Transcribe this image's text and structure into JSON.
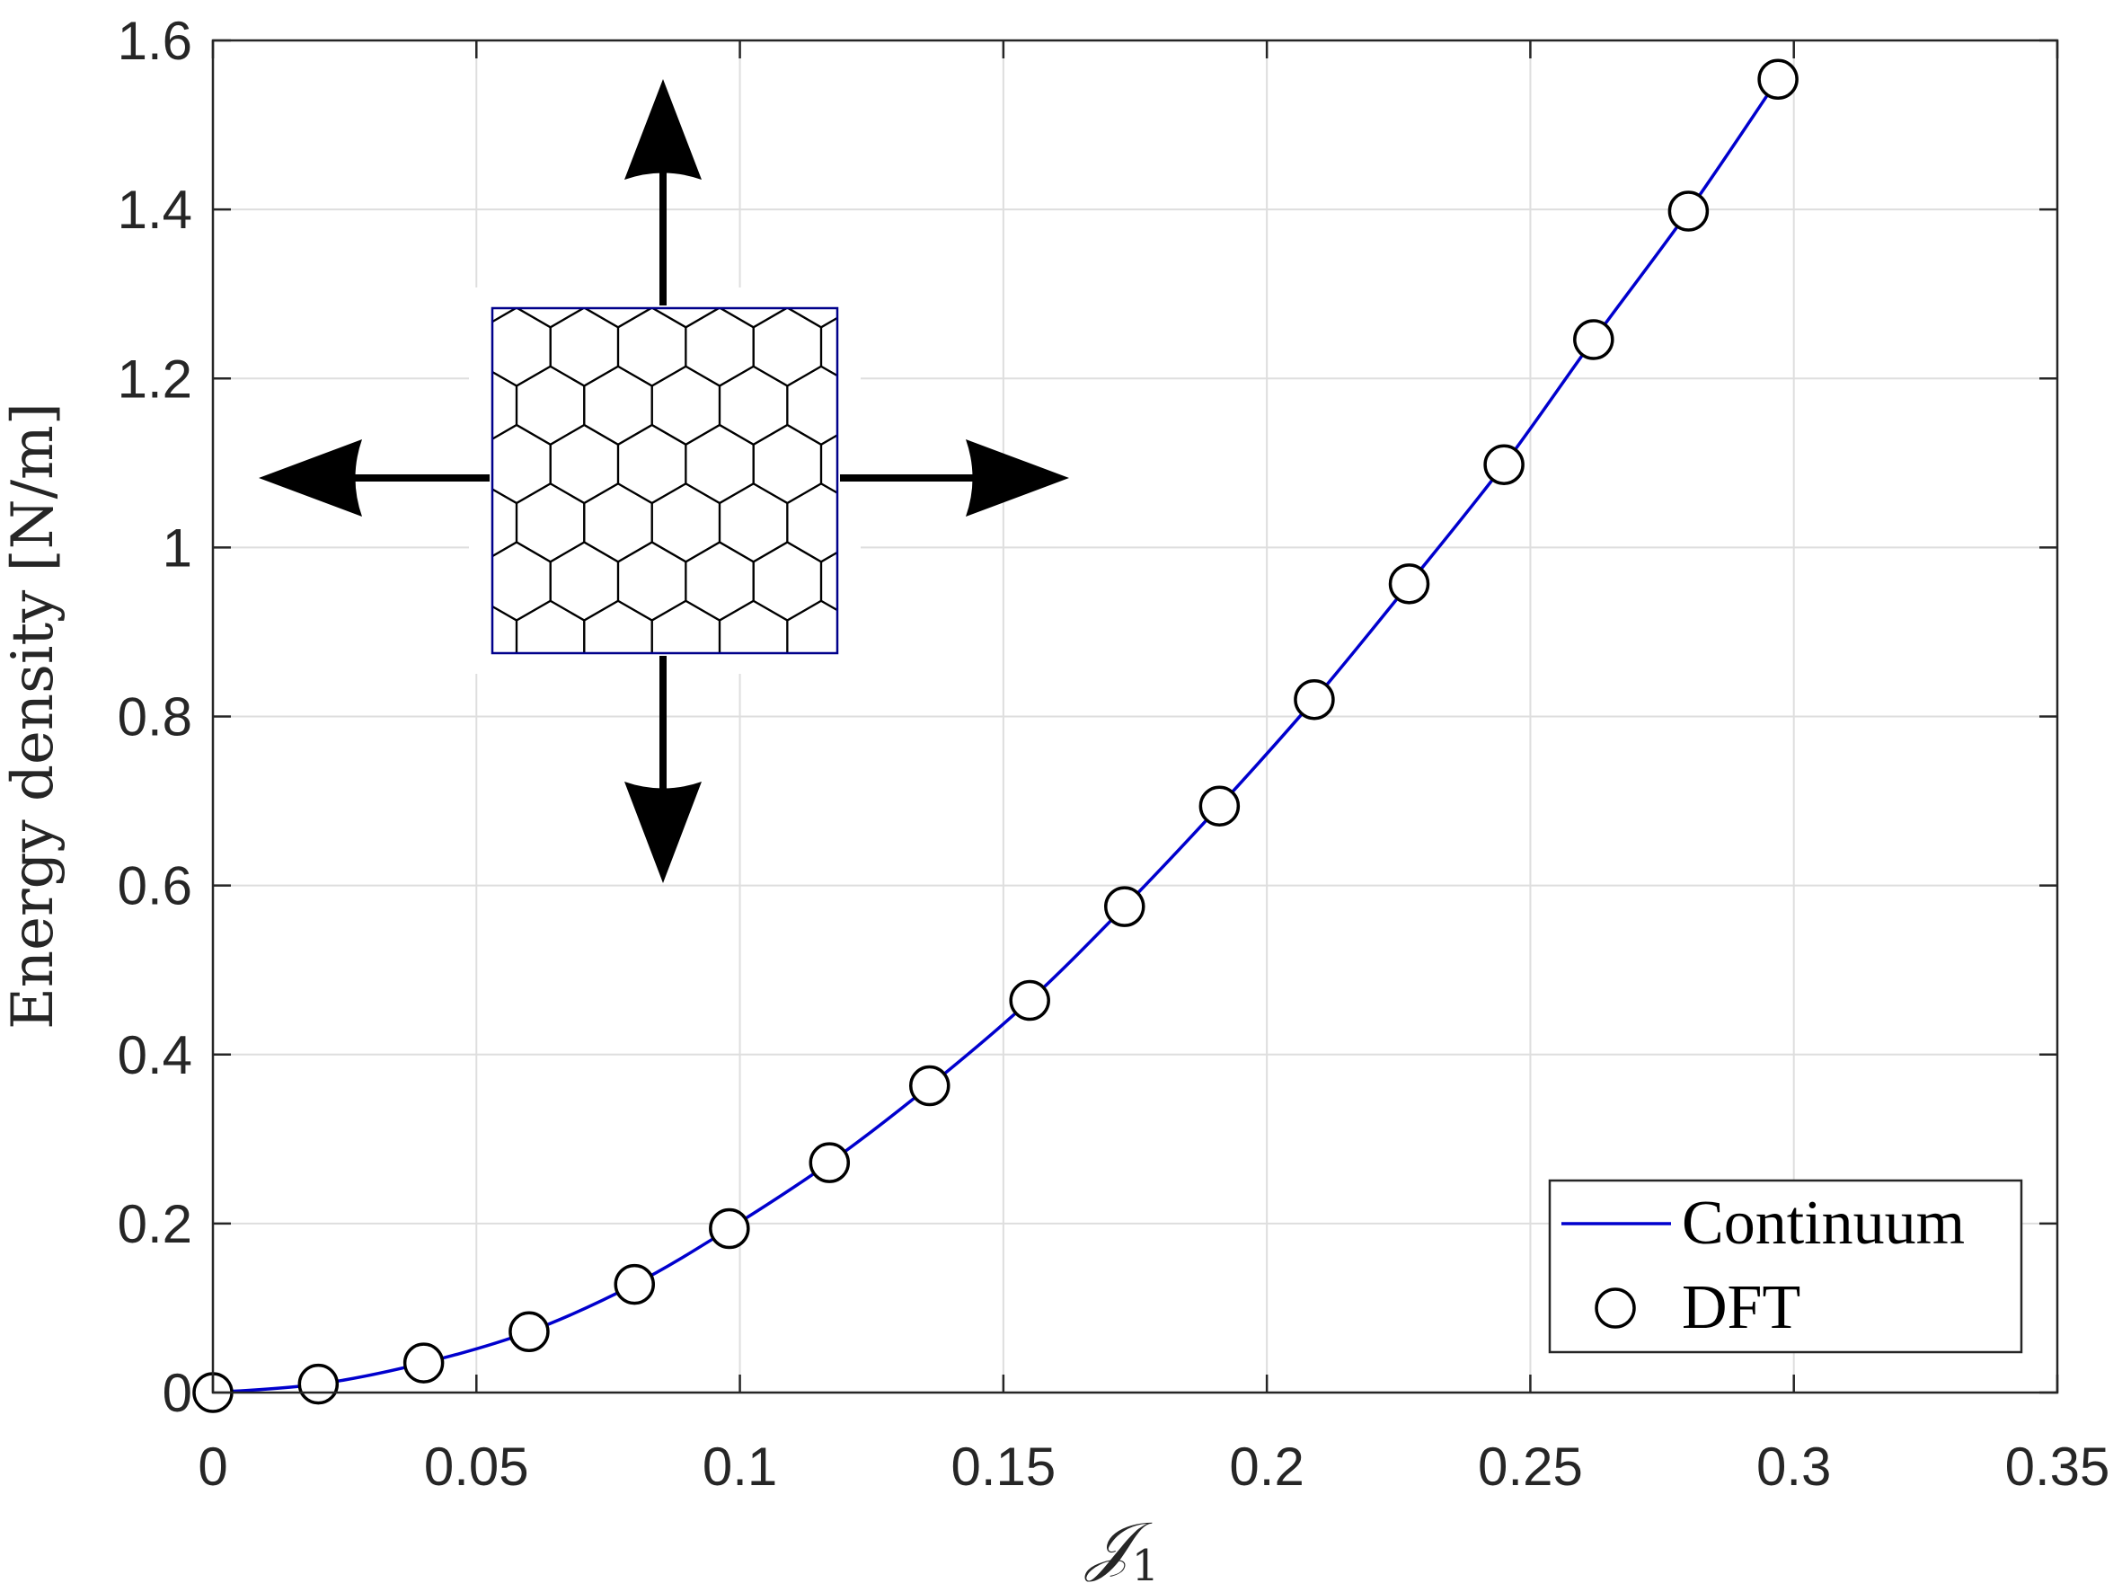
{
  "chart_data": {
    "type": "line",
    "title": "",
    "xlabel": "𝒥",
    "xlabel_subscript": "1",
    "ylabel": "Energy density [N/m]",
    "xlim": [
      0,
      0.35
    ],
    "ylim": [
      0,
      1.6
    ],
    "xticks": [
      0,
      0.05,
      0.1,
      0.15,
      0.2,
      0.25,
      0.3,
      0.35
    ],
    "xtick_labels": [
      "0",
      "0.05",
      "0.1",
      "0.15",
      "0.2",
      "0.25",
      "0.3",
      "0.35"
    ],
    "yticks": [
      0,
      0.2,
      0.4,
      0.6,
      0.8,
      1.0,
      1.2,
      1.4,
      1.6
    ],
    "ytick_labels": [
      "0",
      "0.2",
      "0.4",
      "0.6",
      "0.8",
      "1",
      "1.2",
      "1.4",
      "1.6"
    ],
    "grid": true,
    "legend_position": "bottom-right",
    "series": [
      {
        "name": "Continuum",
        "style": "line",
        "color": "#0000CD",
        "x": [
          0,
          0.02,
          0.04,
          0.06,
          0.08,
          0.098,
          0.117,
          0.136,
          0.155,
          0.173,
          0.191,
          0.209,
          0.227,
          0.245,
          0.262,
          0.28,
          0.297
        ],
        "y": [
          0,
          0.01,
          0.035,
          0.072,
          0.128,
          0.194,
          0.272,
          0.363,
          0.464,
          0.575,
          0.694,
          0.82,
          0.957,
          1.098,
          1.246,
          1.398,
          1.554
        ]
      },
      {
        "name": "DFT",
        "style": "marker",
        "marker": "open-circle",
        "color": "#000000",
        "x": [
          0,
          0.02,
          0.04,
          0.06,
          0.08,
          0.098,
          0.117,
          0.136,
          0.155,
          0.173,
          0.191,
          0.209,
          0.227,
          0.245,
          0.262,
          0.28,
          0.297
        ],
        "y": [
          0,
          0.01,
          0.035,
          0.072,
          0.128,
          0.194,
          0.272,
          0.363,
          0.464,
          0.575,
          0.694,
          0.82,
          0.957,
          1.098,
          1.246,
          1.398,
          1.554
        ]
      }
    ],
    "inset": {
      "description_icon": "biaxial-stretch-honeycomb-lattice-icon",
      "lattice_border_color": "#00008B",
      "arrow_color": "#000000"
    }
  }
}
